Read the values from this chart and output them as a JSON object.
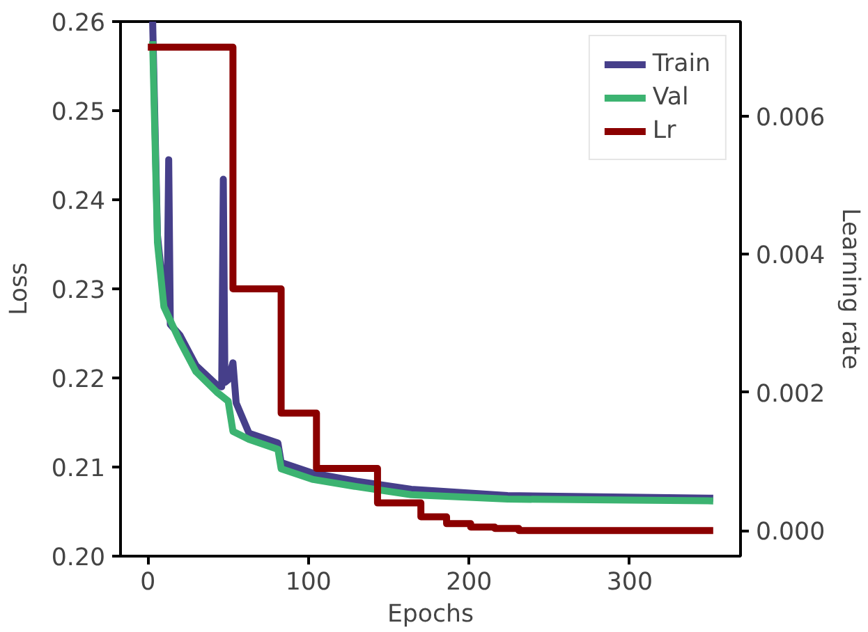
{
  "chart_data": {
    "type": "line",
    "xlabel": "Epochs",
    "ylabel": "Loss",
    "y2label": "Learning rate",
    "xlim": [
      -17,
      369
    ],
    "xticks": [
      0,
      100,
      200,
      300
    ],
    "ylim": [
      0.2,
      0.26
    ],
    "yticks": [
      {
        "value": 0.2,
        "label": "0.20"
      },
      0.21,
      0.22,
      0.23,
      0.24,
      0.25,
      0.26
    ],
    "y2lim": [
      -0.00037,
      0.00737
    ],
    "y2ticks": [
      {
        "value": 0,
        "label": "0.000"
      },
      {
        "value": 0.002,
        "label": "0.002"
      },
      {
        "value": 0.004,
        "label": "0.004"
      },
      {
        "value": 0.006,
        "label": "0.006"
      }
    ],
    "grid": false,
    "legend": "top right",
    "line_style": "solid",
    "marker": "none",
    "series": [
      {
        "name": "Train",
        "color": "#463f8a",
        "x": [
          3,
          6,
          10,
          12,
          13,
          14,
          20,
          30,
          43,
          46,
          47,
          48,
          50,
          53,
          55,
          63,
          81,
          83,
          103,
          130,
          164,
          224,
          352
        ],
        "values": [
          0.26,
          0.236,
          0.229,
          0.228,
          0.2445,
          0.226,
          0.2248,
          0.2214,
          0.2192,
          0.219,
          0.2423,
          0.2195,
          0.2198,
          0.2217,
          0.2172,
          0.2138,
          0.2127,
          0.2105,
          0.2093,
          0.2084,
          0.2075,
          0.2068,
          0.2065
        ]
      },
      {
        "name": "Val",
        "color": "#3cb371",
        "x": [
          3,
          6,
          10,
          20,
          30,
          43,
          50,
          53,
          63,
          81,
          83,
          103,
          130,
          164,
          224,
          352
        ],
        "values": [
          0.2578,
          0.2352,
          0.228,
          0.2241,
          0.2207,
          0.2184,
          0.2174,
          0.214,
          0.2131,
          0.212,
          0.2098,
          0.2086,
          0.2078,
          0.2069,
          0.2064,
          0.2062
        ]
      },
      {
        "name": "Lr",
        "color": "#8b0000",
        "type": "step",
        "axis": "y2",
        "x": [
          0,
          53,
          83,
          105,
          143,
          170,
          186,
          201,
          216,
          231,
          352
        ],
        "values": [
          0.007,
          0.0035,
          0.0017,
          0.0009,
          0.0004,
          0.0002,
          0.0001,
          5e-05,
          3e-05,
          0.0,
          0.0
        ]
      }
    ]
  }
}
